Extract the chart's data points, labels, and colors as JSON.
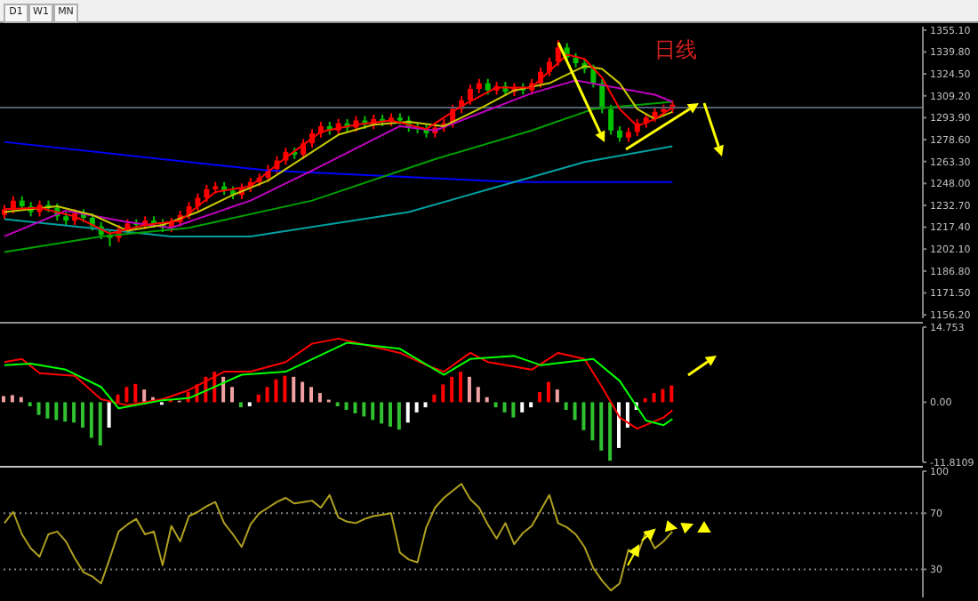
{
  "chart_data": [
    {
      "type": "candlestick",
      "annotations": [
        "日线",
        "D1",
        "W1",
        "MN"
      ],
      "tick_labels": "y",
      "categories": [
        null,
        null,
        null,
        null,
        null,
        null,
        null,
        null,
        null,
        null,
        null,
        null,
        null,
        null,
        null,
        null,
        null,
        null,
        null,
        null,
        null,
        null,
        null,
        null,
        null,
        null,
        null,
        null,
        null,
        null,
        null,
        null,
        null,
        null,
        null,
        null,
        null,
        null,
        null,
        null,
        null,
        null,
        null,
        null,
        null,
        null,
        null,
        null,
        null,
        null,
        null,
        null,
        null,
        null,
        null,
        null,
        null,
        null,
        null,
        null,
        null,
        null,
        null,
        null,
        null,
        null,
        null,
        null,
        null,
        null,
        null,
        null,
        null,
        null,
        null,
        null,
        null,
        null,
        null,
        null,
        null,
        null,
        null,
        null,
        null,
        null,
        null,
        null,
        null,
        null,
        null,
        null,
        null,
        null,
        null,
        null,
        null,
        null,
        null,
        null,
        null,
        null,
        null,
        null,
        null
      ],
      "ohlc": [
        [
          1226,
          1233,
          1223,
          1230
        ],
        [
          1230,
          1239,
          1227,
          1236
        ],
        [
          1236,
          1239,
          1229,
          1232
        ],
        [
          1232,
          1235,
          1225,
          1228
        ],
        [
          1228,
          1236,
          1225,
          1233
        ],
        [
          1233,
          1236,
          1228,
          1231
        ],
        [
          1231,
          1234,
          1222,
          1225
        ],
        [
          1225,
          1228,
          1219,
          1222
        ],
        [
          1222,
          1230,
          1219,
          1227
        ],
        [
          1227,
          1230,
          1221,
          1224
        ],
        [
          1224,
          1227,
          1215,
          1218
        ],
        [
          1218,
          1221,
          1209,
          1212
        ],
        [
          1212,
          1215,
          1204,
          1210
        ],
        [
          1210,
          1219,
          1207,
          1216
        ],
        [
          1216,
          1223,
          1213,
          1220
        ],
        [
          1220,
          1223,
          1216,
          1219
        ],
        [
          1219,
          1225,
          1216,
          1222
        ],
        [
          1222,
          1225,
          1217,
          1220
        ],
        [
          1220,
          1223,
          1214,
          1217
        ],
        [
          1217,
          1224,
          1214,
          1221
        ],
        [
          1221,
          1229,
          1218,
          1226
        ],
        [
          1226,
          1235,
          1223,
          1232
        ],
        [
          1232,
          1241,
          1229,
          1238
        ],
        [
          1238,
          1247,
          1235,
          1244
        ],
        [
          1244,
          1249,
          1241,
          1246
        ],
        [
          1246,
          1249,
          1240,
          1243
        ],
        [
          1243,
          1246,
          1237,
          1240
        ],
        [
          1240,
          1248,
          1237,
          1245
        ],
        [
          1245,
          1252,
          1242,
          1249
        ],
        [
          1249,
          1255,
          1246,
          1252
        ],
        [
          1252,
          1261,
          1249,
          1258
        ],
        [
          1258,
          1267,
          1255,
          1264
        ],
        [
          1264,
          1273,
          1261,
          1270
        ],
        [
          1270,
          1273,
          1265,
          1268
        ],
        [
          1268,
          1279,
          1265,
          1276
        ],
        [
          1276,
          1286,
          1273,
          1283
        ],
        [
          1283,
          1291,
          1280,
          1288
        ],
        [
          1288,
          1291,
          1282,
          1285
        ],
        [
          1285,
          1293,
          1282,
          1290
        ],
        [
          1290,
          1293,
          1284,
          1287
        ],
        [
          1287,
          1295,
          1284,
          1292
        ],
        [
          1292,
          1295,
          1286,
          1289
        ],
        [
          1289,
          1296,
          1286,
          1293
        ],
        [
          1293,
          1296,
          1288,
          1291
        ],
        [
          1291,
          1297,
          1288,
          1294
        ],
        [
          1294,
          1297,
          1289,
          1292
        ],
        [
          1292,
          1295,
          1284,
          1287
        ],
        [
          1287,
          1290,
          1283,
          1286
        ],
        [
          1286,
          1289,
          1280,
          1283
        ],
        [
          1283,
          1290,
          1280,
          1287
        ],
        [
          1287,
          1293,
          1284,
          1290
        ],
        [
          1290,
          1303,
          1287,
          1300
        ],
        [
          1300,
          1309,
          1297,
          1306
        ],
        [
          1306,
          1317,
          1303,
          1314
        ],
        [
          1314,
          1321,
          1311,
          1318
        ],
        [
          1318,
          1321,
          1310,
          1313
        ],
        [
          1313,
          1319,
          1310,
          1316
        ],
        [
          1316,
          1319,
          1309,
          1312
        ],
        [
          1312,
          1318,
          1309,
          1315
        ],
        [
          1315,
          1318,
          1310,
          1313
        ],
        [
          1313,
          1321,
          1310,
          1318
        ],
        [
          1318,
          1329,
          1315,
          1326
        ],
        [
          1326,
          1336,
          1323,
          1333
        ],
        [
          1333,
          1348,
          1330,
          1343
        ],
        [
          1343,
          1346,
          1333,
          1336
        ],
        [
          1336,
          1339,
          1329,
          1332
        ],
        [
          1332,
          1335,
          1325,
          1328
        ],
        [
          1328,
          1331,
          1315,
          1318
        ],
        [
          1318,
          1321,
          1297,
          1300
        ],
        [
          1300,
          1303,
          1282,
          1285
        ],
        [
          1285,
          1288,
          1277,
          1280
        ],
        [
          1280,
          1287,
          1277,
          1284
        ],
        [
          1284,
          1293,
          1281,
          1290
        ],
        [
          1290,
          1297,
          1287,
          1294
        ],
        [
          1294,
          1301,
          1291,
          1298
        ],
        [
          1298,
          1303,
          1295,
          1300
        ],
        [
          1300,
          1306,
          1297,
          1303
        ],
        null,
        null,
        null,
        null,
        null,
        null,
        null,
        null,
        null,
        null,
        null,
        null,
        null,
        null,
        null,
        null,
        null,
        null,
        null,
        null,
        null,
        null,
        null,
        null,
        null,
        null,
        null,
        null
      ],
      "colors": [
        "#ff0000",
        "#ff0000",
        "#00c000",
        "#00c000",
        "#ff0000",
        "#00c000",
        "#00c000",
        "#00c000",
        "#ff0000",
        "#00c000",
        "#00c000",
        "#00c000",
        "#00c000",
        "#ff0000",
        "#ff0000",
        "#00c000",
        "#ff0000",
        "#00c000",
        "#00c000",
        "#ff0000",
        "#ff0000",
        "#ff0000",
        "#ff0000",
        "#ff0000",
        "#ff0000",
        "#00c000",
        "#00c000",
        "#ff0000",
        "#ff0000",
        "#ff0000",
        "#ff0000",
        "#ff0000",
        "#ff0000",
        "#00c000",
        "#ff0000",
        "#ff0000",
        "#ff0000",
        "#00c000",
        "#ff0000",
        "#00c000",
        "#ff0000",
        "#00c000",
        "#ff0000",
        "#00c000",
        "#ff0000",
        "#00c000",
        "#00c000",
        "#00c000",
        "#00c000",
        "#ff0000",
        "#ff0000",
        "#ff0000",
        "#ff0000",
        "#ff0000",
        "#ff0000",
        "#00c000",
        "#ff0000",
        "#00c000",
        "#ff0000",
        "#00c000",
        "#ff0000",
        "#ff0000",
        "#ff0000",
        "#ff0000",
        "#00c000",
        "#00c000",
        "#00c000",
        "#00c000",
        "#00c000",
        "#00c000",
        "#00c000",
        "#ff0000",
        "#ff0000",
        "#ff0000",
        "#ff0000",
        "#ff0000",
        "#ff0000",
        null,
        null,
        null,
        null,
        null,
        null,
        null,
        null,
        null,
        null,
        null,
        null,
        null,
        null,
        null,
        null,
        null,
        null,
        null,
        null,
        null,
        null,
        null,
        null,
        null,
        null,
        null,
        null
      ],
      "series": [
        {
          "type": "line",
          "color": "#0000ff",
          "values": [
            1277,
            null,
            null,
            null,
            null,
            null,
            null,
            null,
            null,
            null,
            null,
            null,
            null,
            null,
            null,
            null,
            null,
            null,
            null,
            null,
            null,
            null,
            null,
            null,
            null,
            null,
            null,
            null,
            null,
            null,
            1257,
            null,
            null,
            null,
            null,
            null,
            null,
            null,
            null,
            null,
            null,
            null,
            null,
            null,
            null,
            null,
            null,
            null,
            null,
            null,
            null,
            null,
            null,
            null,
            null,
            null,
            null,
            null,
            1249,
            null,
            null,
            null,
            null,
            null,
            null,
            null,
            null,
            null,
            null,
            null,
            null,
            null,
            null,
            null,
            null,
            null,
            1249,
            null,
            null,
            null,
            null,
            null,
            null,
            null,
            null,
            null,
            null,
            null,
            null,
            null,
            null,
            null,
            null,
            null,
            null,
            null,
            null,
            null,
            null,
            null,
            null,
            null,
            null,
            null,
            null
          ]
        },
        {
          "type": "line",
          "color": "#00a0a0",
          "values": [
            1223,
            null,
            null,
            null,
            null,
            null,
            null,
            null,
            null,
            null,
            null,
            null,
            null,
            null,
            null,
            null,
            null,
            null,
            null,
            1211,
            null,
            null,
            null,
            null,
            null,
            null,
            null,
            null,
            1211,
            null,
            null,
            null,
            null,
            null,
            null,
            null,
            null,
            null,
            null,
            null,
            null,
            null,
            null,
            null,
            null,
            null,
            1228,
            null,
            null,
            null,
            null,
            null,
            null,
            null,
            null,
            null,
            null,
            null,
            1249,
            null,
            null,
            null,
            null,
            null,
            null,
            null,
            1263,
            null,
            null,
            null,
            null,
            null,
            null,
            null,
            null,
            null,
            1274,
            null,
            null,
            null,
            null,
            null,
            null,
            null,
            null,
            null,
            null,
            null,
            null,
            null,
            null,
            null,
            null,
            null,
            null,
            null,
            null,
            null,
            null,
            null,
            null,
            null,
            null,
            null,
            null
          ]
        },
        {
          "type": "line",
          "color": "#00a000",
          "values": [
            1200,
            null,
            null,
            null,
            null,
            null,
            null,
            null,
            null,
            null,
            null,
            1211,
            null,
            null,
            null,
            null,
            null,
            null,
            null,
            null,
            null,
            1217,
            null,
            null,
            null,
            null,
            null,
            null,
            null,
            null,
            null,
            null,
            null,
            null,
            null,
            1236,
            null,
            null,
            null,
            null,
            null,
            null,
            null,
            null,
            null,
            null,
            null,
            null,
            null,
            1265,
            null,
            null,
            null,
            null,
            null,
            null,
            null,
            null,
            null,
            null,
            1285,
            null,
            null,
            null,
            null,
            null,
            null,
            1300,
            null,
            null,
            null,
            null,
            null,
            null,
            null,
            null,
            1305,
            null,
            null,
            null,
            null,
            null,
            null,
            null,
            null,
            null,
            null,
            null,
            null,
            null,
            null,
            null,
            null,
            null,
            null,
            null,
            null,
            null,
            null,
            null,
            null,
            null,
            null,
            null,
            null
          ]
        },
        {
          "type": "line",
          "color": "#c000c0",
          "values": [
            1211,
            null,
            null,
            null,
            null,
            null,
            null,
            1229,
            null,
            null,
            null,
            null,
            null,
            null,
            1221,
            null,
            null,
            null,
            null,
            1217,
            null,
            null,
            null,
            null,
            null,
            null,
            null,
            null,
            1236,
            null,
            null,
            null,
            null,
            null,
            null,
            1257,
            null,
            null,
            null,
            null,
            null,
            null,
            null,
            null,
            null,
            1288,
            null,
            null,
            null,
            1285,
            null,
            null,
            null,
            null,
            null,
            null,
            null,
            null,
            null,
            null,
            1311,
            null,
            null,
            null,
            null,
            1320,
            null,
            null,
            null,
            null,
            null,
            null,
            null,
            null,
            1310,
            null,
            1305,
            null,
            null,
            null,
            null,
            null,
            null,
            null,
            null,
            null,
            null,
            null,
            null,
            null,
            null,
            null,
            null,
            null,
            null,
            null,
            null,
            null,
            null,
            null,
            null,
            null,
            null,
            null,
            null
          ]
        },
        {
          "type": "line",
          "color": "#c8c800",
          "values": [
            1228,
            null,
            null,
            null,
            null,
            null,
            1232,
            null,
            null,
            null,
            1226,
            null,
            null,
            null,
            1215,
            null,
            null,
            null,
            1219,
            null,
            null,
            null,
            1228,
            null,
            null,
            null,
            1240,
            null,
            null,
            null,
            1250,
            null,
            null,
            null,
            1266,
            null,
            null,
            null,
            1282,
            null,
            null,
            null,
            1289,
            null,
            null,
            null,
            1291,
            null,
            null,
            null,
            1288,
            null,
            null,
            null,
            1300,
            null,
            null,
            null,
            1313,
            null,
            null,
            null,
            1318,
            null,
            null,
            null,
            1330,
            null,
            1328,
            null,
            1318,
            null,
            1300,
            null,
            1293,
            null,
            1298,
            null,
            null,
            null,
            null,
            null,
            null,
            null,
            null,
            null,
            null,
            null,
            null,
            null,
            null,
            null,
            null,
            null,
            null,
            null,
            null,
            null,
            null,
            null,
            null,
            null,
            null,
            null,
            null
          ]
        },
        {
          "type": "line",
          "color": "#ff0000",
          "values": [
            1230,
            null,
            null,
            null,
            1231,
            null,
            null,
            null,
            1225,
            null,
            null,
            null,
            1213,
            null,
            null,
            null,
            1219,
            null,
            null,
            null,
            1222,
            null,
            null,
            null,
            1242,
            null,
            null,
            null,
            1246,
            null,
            null,
            null,
            1266,
            null,
            null,
            null,
            1284,
            null,
            null,
            null,
            1289,
            null,
            null,
            null,
            1292,
            null,
            null,
            null,
            1286,
            null,
            null,
            null,
            1302,
            null,
            null,
            null,
            1315,
            null,
            null,
            null,
            1315,
            null,
            null,
            null,
            1338,
            null,
            1335,
            null,
            1322,
            null,
            1300,
            null,
            1288,
            null,
            1293,
            null,
            1301,
            null,
            null,
            null,
            null,
            null,
            null,
            null,
            null,
            null,
            null,
            null,
            null,
            null,
            null,
            null,
            null,
            null,
            null,
            null,
            null,
            null,
            null,
            null,
            null,
            null,
            null,
            null,
            null
          ]
        }
      ],
      "ylim": [
        1153.8,
        1357.5
      ],
      "yticks": [
        {
          "value": 1156.2,
          "label": "1156.20"
        },
        {
          "value": 1171.5,
          "label": "1171.50"
        },
        {
          "value": 1186.8,
          "label": "1186.80"
        },
        {
          "value": 1202.1,
          "label": "1202.10"
        },
        {
          "value": 1217.4,
          "label": "1217.40"
        },
        {
          "value": 1232.7,
          "label": "1232.70"
        },
        {
          "value": 1248,
          "label": "1248.00"
        },
        {
          "value": 1263.3,
          "label": "1263.30"
        },
        {
          "value": 1278.6,
          "label": "1278.60"
        },
        {
          "value": 1293.9,
          "label": "1293.90"
        },
        {
          "value": 1309.2,
          "label": "1309.20"
        },
        {
          "value": 1324.5,
          "label": "1324.50"
        },
        {
          "value": 1339.8,
          "label": "1339.80"
        },
        {
          "value": 1355.1,
          "label": "1355.10"
        }
      ],
      "ref_lines": [
        {
          "axis": "y",
          "value": 1301,
          "color": "#506070"
        }
      ]
    },
    {
      "type": "bar",
      "tick_labels": "y",
      "categories": [
        null,
        null,
        null,
        null,
        null,
        null,
        null,
        null,
        null,
        null,
        null,
        null,
        null,
        null,
        null,
        null,
        null,
        null,
        null,
        null,
        null,
        null,
        null,
        null,
        null,
        null,
        null,
        null,
        null,
        null,
        null,
        null,
        null,
        null,
        null,
        null,
        null,
        null,
        null,
        null,
        null,
        null,
        null,
        null,
        null,
        null,
        null,
        null,
        null,
        null,
        null,
        null,
        null,
        null,
        null,
        null,
        null,
        null,
        null,
        null,
        null,
        null,
        null,
        null,
        null,
        null,
        null,
        null,
        null,
        null,
        null,
        null,
        null,
        null,
        null,
        null,
        null,
        null,
        null,
        null,
        null,
        null,
        null,
        null,
        null,
        null,
        null,
        null,
        null,
        null,
        null,
        null,
        null,
        null,
        null,
        null,
        null,
        null,
        null,
        null,
        null,
        null,
        null,
        null,
        null
      ],
      "values": [
        1.2,
        1.4,
        1,
        -0.8,
        -2.5,
        -3.2,
        -3.5,
        -3.8,
        -4,
        -5,
        -7,
        -8.5,
        -5,
        1.5,
        3,
        3.6,
        2.5,
        1,
        -0.5,
        0.5,
        0.3,
        2,
        3.5,
        5,
        6,
        5,
        3,
        -1,
        -0.8,
        1.5,
        3,
        4.5,
        5.2,
        5,
        4,
        3,
        1.8,
        0.5,
        -0.8,
        -1.5,
        -2.2,
        -2.8,
        -3.5,
        -4.2,
        -4.8,
        -5.4,
        -4,
        -2,
        -1,
        1.5,
        3.5,
        5,
        6,
        5,
        3,
        1,
        -1,
        -2,
        -3,
        -2,
        -1,
        2,
        4,
        2.5,
        -1.5,
        -3.5,
        -5.5,
        -7.5,
        -9.5,
        -11.5,
        -9,
        -5,
        -1.5,
        0.8,
        1.8,
        2.6,
        3.3,
        null,
        null,
        null,
        null,
        null,
        null,
        null,
        null,
        null,
        null,
        null,
        null,
        null,
        null,
        null,
        null,
        null,
        null,
        null,
        null,
        null,
        null,
        null,
        null,
        null,
        null,
        null,
        null
      ],
      "colors": [
        "#f0a0a0",
        "#f0a0a0",
        "#f0a0a0",
        "#30c030",
        "#30c030",
        "#30c030",
        "#30c030",
        "#30c030",
        "#30c030",
        "#30c030",
        "#30c030",
        "#30c030",
        "#ffffff",
        "#ff0000",
        "#ff0000",
        "#ff0000",
        "#f0a0a0",
        "#f0a0a0",
        "#ffffff",
        "#ff0000",
        "#f0a0a0",
        "#ff0000",
        "#ff0000",
        "#ff0000",
        "#ff0000",
        "#f0a0a0",
        "#f0a0a0",
        "#30c030",
        "#ffffff",
        "#ff0000",
        "#ff0000",
        "#ff0000",
        "#ff0000",
        "#f0a0a0",
        "#f0a0a0",
        "#f0a0a0",
        "#f0a0a0",
        "#f0a0a0",
        "#30c030",
        "#30c030",
        "#30c030",
        "#30c030",
        "#30c030",
        "#30c030",
        "#30c030",
        "#30c030",
        "#ffffff",
        "#ffffff",
        "#ffffff",
        "#ff0000",
        "#ff0000",
        "#ff0000",
        "#ff0000",
        "#f0a0a0",
        "#f0a0a0",
        "#f0a0a0",
        "#30c030",
        "#30c030",
        "#30c030",
        "#ffffff",
        "#ffffff",
        "#ff0000",
        "#ff0000",
        "#f0a0a0",
        "#30c030",
        "#30c030",
        "#30c030",
        "#30c030",
        "#30c030",
        "#30c030",
        "#ffffff",
        "#ffffff",
        "#ffffff",
        "#ff0000",
        "#ff0000",
        "#ff0000",
        "#ff0000",
        null,
        null,
        null,
        null,
        null,
        null,
        null,
        null,
        null,
        null,
        null,
        null,
        null,
        null,
        null,
        null,
        null,
        null,
        null,
        null,
        null,
        null,
        null,
        null,
        null,
        null,
        null,
        null
      ],
      "series": [
        {
          "type": "line",
          "color": "#ff0000",
          "values": [
            7.9,
            null,
            8.5,
            null,
            5.7,
            null,
            null,
            null,
            5.2,
            null,
            null,
            0.6,
            null,
            null,
            -0.6,
            null,
            null,
            null,
            0.6,
            null,
            null,
            2.4,
            null,
            null,
            null,
            6,
            null,
            null,
            6,
            null,
            null,
            null,
            7.9,
            null,
            null,
            11.5,
            null,
            null,
            12.5,
            null,
            null,
            null,
            10.9,
            null,
            null,
            9.7,
            null,
            null,
            7.3,
            null,
            6,
            null,
            null,
            9.7,
            null,
            7.9,
            null,
            null,
            null,
            null,
            6.4,
            null,
            null,
            9.7,
            null,
            null,
            8.5,
            null,
            3,
            null,
            -3,
            null,
            -5.2,
            null,
            null,
            -3,
            -1.6,
            null,
            null,
            null,
            null,
            null,
            null,
            null,
            null,
            null,
            null,
            null,
            null,
            null,
            null,
            null,
            null,
            null,
            null,
            null,
            null,
            null,
            null,
            null,
            null,
            null,
            null,
            null,
            null
          ]
        },
        {
          "type": "line",
          "color": "#00ff00",
          "values": [
            7.3,
            null,
            null,
            7.6,
            null,
            null,
            null,
            6.4,
            null,
            null,
            null,
            3,
            null,
            -1.2,
            null,
            null,
            null,
            null,
            0.4,
            null,
            null,
            0.8,
            null,
            null,
            null,
            null,
            null,
            5.4,
            null,
            null,
            null,
            null,
            6,
            null,
            null,
            null,
            null,
            null,
            null,
            11.7,
            null,
            null,
            null,
            null,
            null,
            10.5,
            null,
            null,
            null,
            null,
            5.4,
            null,
            null,
            8.5,
            null,
            null,
            null,
            null,
            9.1,
            null,
            null,
            7.3,
            null,
            null,
            null,
            null,
            null,
            8.5,
            null,
            null,
            4.2,
            null,
            null,
            -3.6,
            null,
            -4.5,
            -3.3,
            null,
            null,
            null,
            null,
            null,
            null,
            null,
            null,
            null,
            null,
            null,
            null,
            null,
            null,
            null,
            null,
            null,
            null,
            null,
            null,
            null,
            null,
            null,
            null,
            null,
            null,
            null,
            null
          ]
        }
      ],
      "ylim": [
        -11.8109,
        14.753
      ],
      "yticks": [
        -11.8109,
        {
          "value": 0,
          "label": "0.00"
        },
        14.753
      ]
    },
    {
      "type": "line",
      "tick_labels": "y",
      "categories": [
        null,
        null,
        null,
        null,
        null,
        null,
        null,
        null,
        null,
        null,
        null,
        null,
        null,
        null,
        null,
        null,
        null,
        null,
        null,
        null,
        null,
        null,
        null,
        null,
        null,
        null,
        null,
        null,
        null,
        null,
        null,
        null,
        null,
        null,
        null,
        null,
        null,
        null,
        null,
        null,
        null,
        null,
        null,
        null,
        null,
        null,
        null,
        null,
        null,
        null,
        null,
        null,
        null,
        null,
        null,
        null,
        null,
        null,
        null,
        null,
        null,
        null,
        null,
        null,
        null,
        null,
        null,
        null,
        null,
        null,
        null,
        null,
        null,
        null,
        null,
        null,
        null,
        null,
        null,
        null,
        null,
        null,
        null,
        null,
        null,
        null,
        null,
        null,
        null,
        null,
        null,
        null,
        null,
        null,
        null,
        null,
        null,
        null,
        null,
        null,
        null,
        null,
        null,
        null,
        null
      ],
      "series": [
        {
          "color": "#b0a020",
          "values": [
            63,
            71,
            55,
            45,
            39,
            55,
            57,
            50,
            38,
            28,
            25,
            20,
            38,
            57,
            62,
            66,
            55,
            57,
            33,
            61,
            50,
            68,
            71,
            75,
            78,
            63,
            55,
            46,
            62,
            70,
            74,
            78,
            81,
            77,
            78,
            79,
            74,
            83,
            67,
            64,
            63,
            66,
            68,
            69,
            70,
            42,
            37,
            35,
            60,
            74,
            81,
            86,
            91,
            80,
            74,
            62,
            52,
            63,
            48,
            56,
            61,
            72,
            83,
            63,
            60,
            55,
            46,
            31,
            22,
            15,
            20,
            44,
            40,
            57,
            45,
            50,
            57,
            null,
            null,
            null,
            null,
            null,
            null,
            null,
            null,
            null,
            null,
            null,
            null,
            null,
            null,
            null,
            null,
            null,
            null,
            null,
            null,
            null,
            null,
            null,
            null,
            null,
            null,
            null,
            null
          ]
        }
      ],
      "ylim": [
        10,
        100
      ],
      "yticks": [
        30,
        70,
        100
      ],
      "ref_lines": [
        {
          "axis": "y",
          "value": 70,
          "color": "#808080",
          "line_style": "dotted"
        },
        {
          "axis": "y",
          "value": 30,
          "color": "#808080",
          "line_style": "dotted"
        }
      ]
    }
  ]
}
